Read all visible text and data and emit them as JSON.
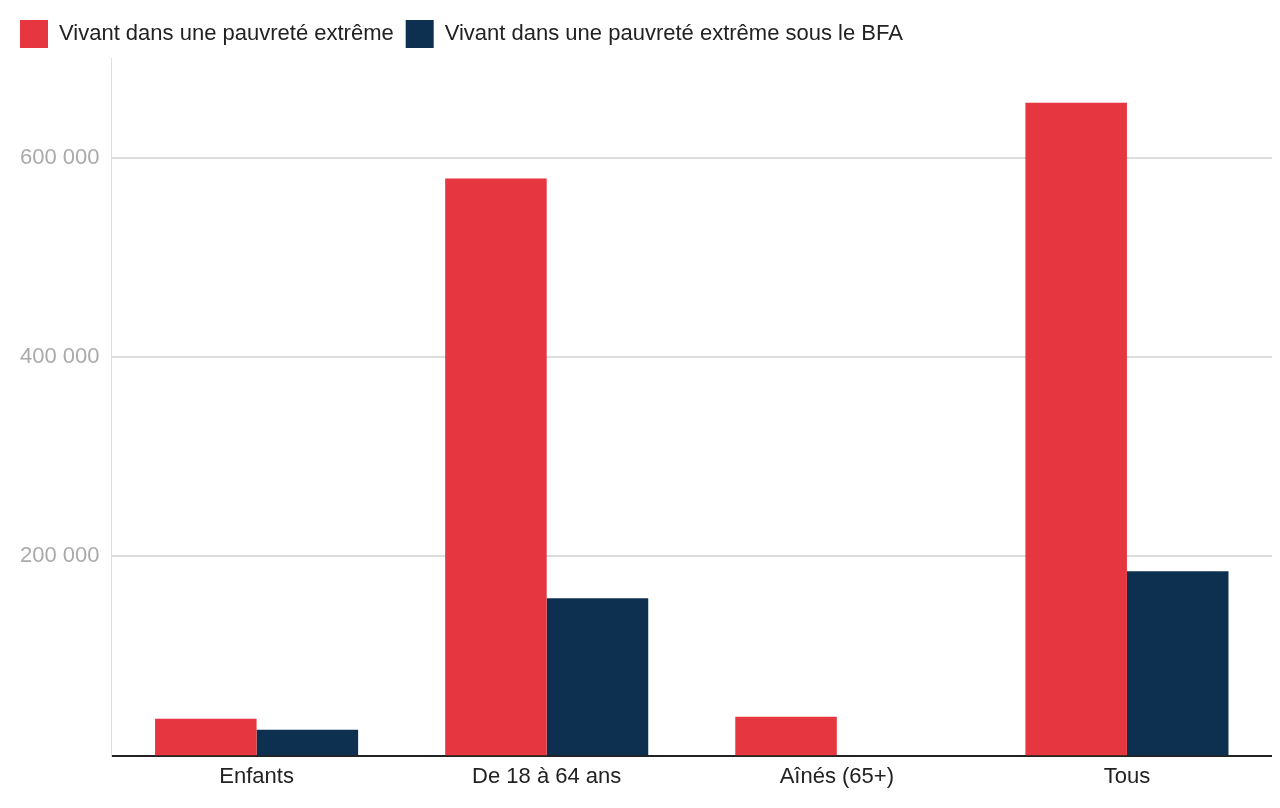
{
  "chart_data": {
    "type": "bar",
    "categories": [
      "Enfants",
      "De 18 à 64 ans",
      "Aînés (65+)",
      "Tous"
    ],
    "series": [
      {
        "name": "Vivant dans une pauvreté extrême",
        "color": "#e63740",
        "values": [
          37000,
          579000,
          39000,
          655000
        ]
      },
      {
        "name": "Vivant dans une pauvreté extrême sous le BFA",
        "color": "#0d3050",
        "values": [
          26000,
          158000,
          0,
          185000
        ]
      }
    ],
    "ylim": [
      0,
      700000
    ],
    "yticks": [
      {
        "value": 200000,
        "label": "200 000"
      },
      {
        "value": 400000,
        "label": "400 000"
      },
      {
        "value": 600000,
        "label": "600 000"
      }
    ],
    "grid": "y",
    "legend": "top left"
  }
}
